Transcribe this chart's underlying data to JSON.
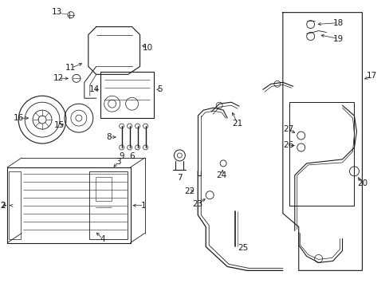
{
  "bg_color": "#ffffff",
  "line_color": "#1a1a1a",
  "font_size": 7.5,
  "fig_width": 4.89,
  "fig_height": 3.6,
  "dpi": 100
}
